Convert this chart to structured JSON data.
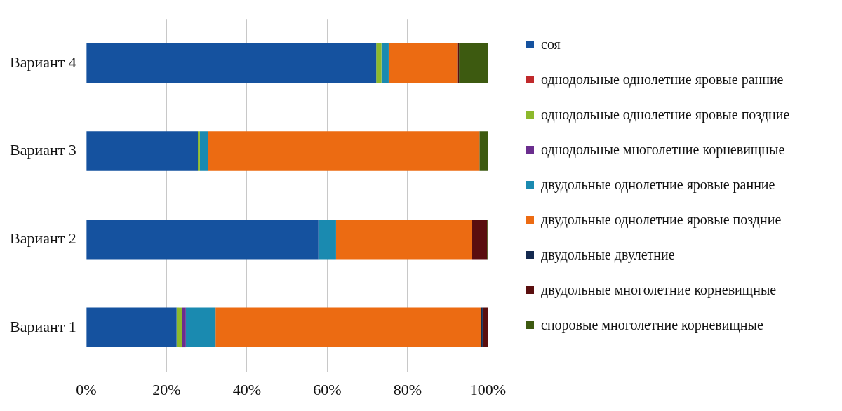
{
  "chart_data": {
    "type": "bar",
    "orientation": "horizontal",
    "stacked": true,
    "categories": [
      "Вариант 4",
      "Вариант 3",
      "Вариант 2",
      "Вариант 1"
    ],
    "series": [
      {
        "name": "соя",
        "color": "#15529f",
        "values": [
          72.2,
          27.8,
          57.8,
          22.5
        ]
      },
      {
        "name": "однодольные однолетние яровые ранние",
        "color": "#c0292b",
        "values": [
          0,
          0,
          0,
          0
        ]
      },
      {
        "name": "однодольные однолетние яровые поздние",
        "color": "#8db92c",
        "values": [
          1.3,
          0.5,
          0,
          1.3
        ]
      },
      {
        "name": "однодольные многолетние корневищные",
        "color": "#6a2d8e",
        "values": [
          0,
          0,
          0,
          1.0
        ]
      },
      {
        "name": "двудольные однолетние яровые ранние",
        "color": "#1a8ab0",
        "values": [
          1.8,
          2.1,
          4.4,
          7.4
        ]
      },
      {
        "name": "двудольные однолетние яровые поздние",
        "color": "#ec6b12",
        "values": [
          17.2,
          67.5,
          33.9,
          66.0
        ]
      },
      {
        "name": "двудольные двулетние",
        "color": "#13294f",
        "values": [
          0,
          0,
          0,
          0.5
        ]
      },
      {
        "name": "двудольные многолетние корневищные",
        "color": "#5a0e0e",
        "values": [
          0.3,
          0,
          3.7,
          1.3
        ]
      },
      {
        "name": "споровые многолетние корневищные",
        "color": "#3d5a10",
        "values": [
          7.4,
          2.1,
          0.2,
          0
        ]
      }
    ],
    "xlim": [
      0,
      100
    ],
    "xticks": [
      {
        "value": 0,
        "label": "0%"
      },
      {
        "value": 20,
        "label": "20%"
      },
      {
        "value": 40,
        "label": "40%"
      },
      {
        "value": 60,
        "label": "60%"
      },
      {
        "value": 80,
        "label": "80%"
      },
      {
        "value": 100,
        "label": "100%"
      }
    ],
    "grid": "x",
    "legend": "right"
  }
}
